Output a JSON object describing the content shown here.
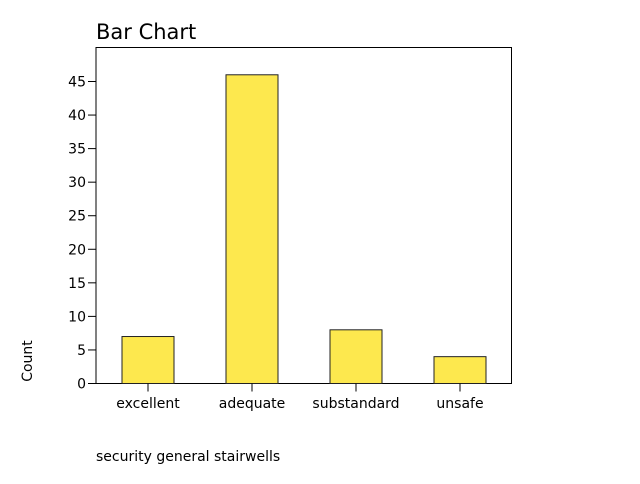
{
  "chart_data": {
    "type": "bar",
    "title": "Bar Chart",
    "xlabel": "security general stairwells",
    "ylabel": "Count",
    "categories": [
      "excellent",
      "adequate",
      "substandard",
      "unsafe"
    ],
    "values": [
      7,
      46,
      8,
      4
    ],
    "ylim": [
      0,
      50
    ],
    "yticks": [
      0,
      5,
      10,
      15,
      20,
      25,
      30,
      35,
      40,
      45
    ],
    "grid": false,
    "bar_color": "#fde84e",
    "bar_edge_color": "#222222"
  }
}
